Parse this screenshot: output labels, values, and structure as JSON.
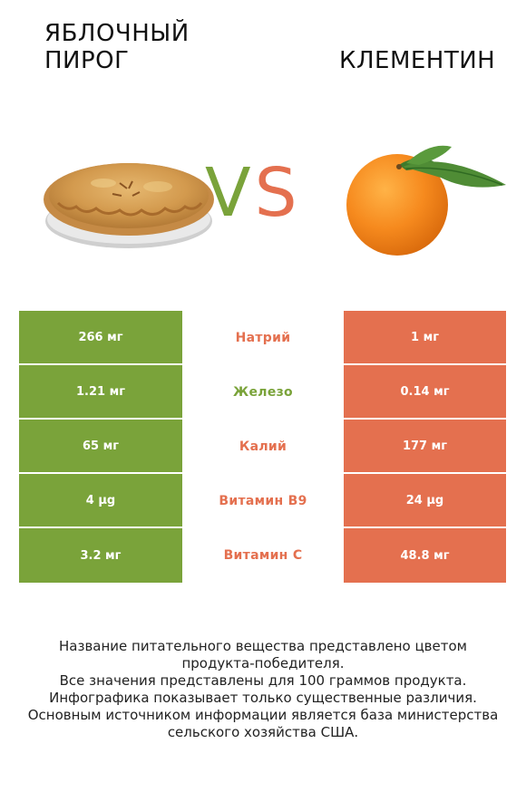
{
  "header": {
    "left_title_line1": "ЯБЛОЧНЫЙ",
    "left_title_line2": "ПИРОГ",
    "right_title": "КЛЕМЕНТИН",
    "vs_v": "V",
    "vs_s": "S"
  },
  "colors": {
    "left": "#7aa33a",
    "right": "#e4704f"
  },
  "images": {
    "left": "apple-pie",
    "right": "clementine"
  },
  "rows": [
    {
      "left": "266 мг",
      "nutrient": "Натрий",
      "right": "1 мг",
      "winner": "right"
    },
    {
      "left": "1.21 мг",
      "nutrient": "Железо",
      "right": "0.14 мг",
      "winner": "left"
    },
    {
      "left": "65 мг",
      "nutrient": "Калий",
      "right": "177 мг",
      "winner": "right"
    },
    {
      "left": "4 µg",
      "nutrient": "Витамин B9",
      "right": "24 µg",
      "winner": "right"
    },
    {
      "left": "3.2 мг",
      "nutrient": "Витамин C",
      "right": "48.8 мг",
      "winner": "right"
    }
  ],
  "footer": {
    "line1": "Название питательного вещества представлено цветом",
    "line2": "продукта-победителя.",
    "line3": "Все значения представлены для 100 граммов продукта.",
    "line4": "Инфографика показывает только существенные различия.",
    "line5": "Основным источником информации является база министерства",
    "line6": "сельского хозяйства США."
  }
}
